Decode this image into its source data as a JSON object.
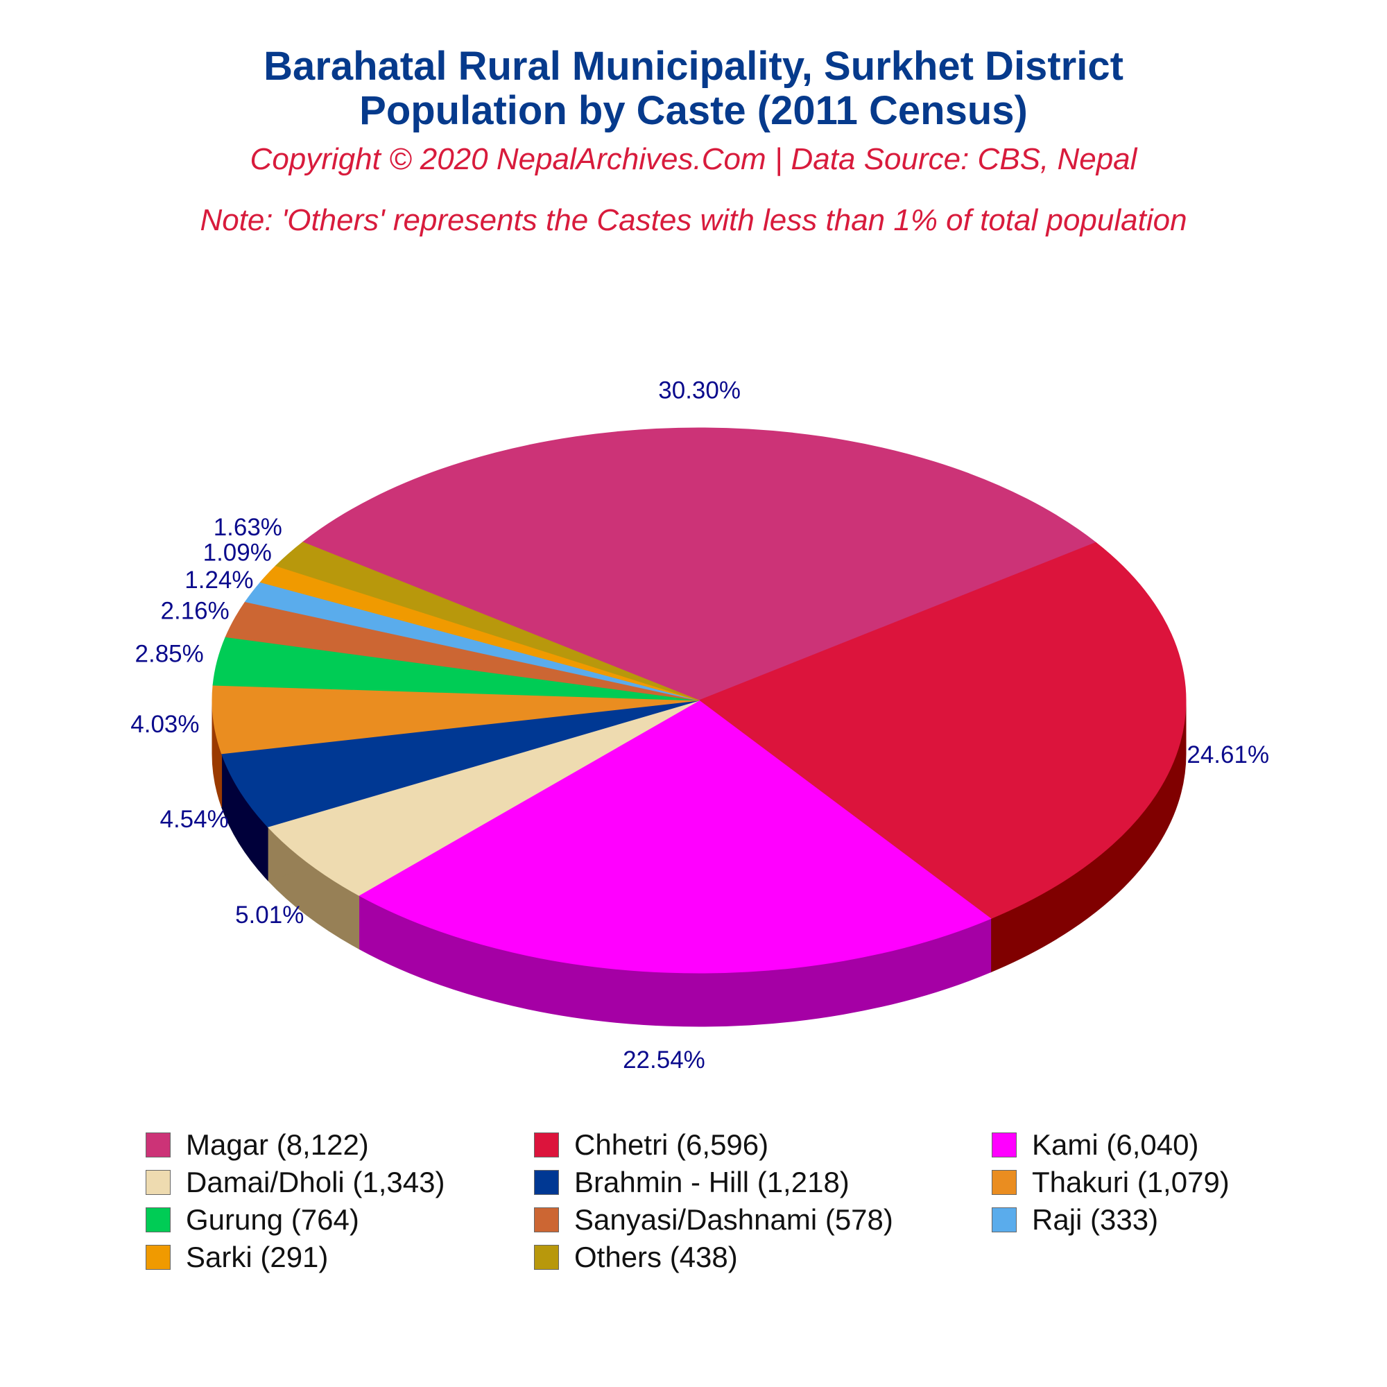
{
  "header": {
    "title_line1": "Barahatal Rural Municipality, Surkhet District",
    "title_line2": "Population by Caste (2011 Census)",
    "subtitle": "Copyright © 2020 NepalArchives.Com | Data Source: CBS, Nepal",
    "note": "Note: 'Others' represents the Castes with less than 1% of total population"
  },
  "chart_data": {
    "type": "pie",
    "style": "3d",
    "legend_position": "bottom",
    "categories": [
      "Magar",
      "Chhetri",
      "Kami",
      "Damai/Dholi",
      "Brahmin - Hill",
      "Thakuri",
      "Gurung",
      "Sanyasi/Dashnami",
      "Raji",
      "Sarki",
      "Others"
    ],
    "values": [
      8122,
      6596,
      6040,
      1343,
      1218,
      1079,
      764,
      578,
      333,
      291,
      438
    ],
    "percent_labels": [
      "30.30%",
      "24.61%",
      "22.54%",
      "5.01%",
      "4.54%",
      "4.03%",
      "2.85%",
      "2.16%",
      "1.24%",
      "1.09%",
      "1.63%"
    ],
    "legend_labels": [
      "Magar (8,122)",
      "Chhetri (6,596)",
      "Kami (6,040)",
      "Damai/Dholi (1,343)",
      "Brahmin - Hill (1,218)",
      "Thakuri (1,079)",
      "Gurung (764)",
      "Sanyasi/Dashnami (578)",
      "Raji (333)",
      "Sarki (291)",
      "Others (438)"
    ],
    "colors": [
      "#cc3377",
      "#dc143c",
      "#ff00ff",
      "#eedbb0",
      "#003893",
      "#ea8d20",
      "#00cc55",
      "#cc6633",
      "#5aacec",
      "#f09a00",
      "#b8980c"
    ],
    "side_colors": [
      "#8a1f4d",
      "#800000",
      "#a500a5",
      "#978056",
      "#00003a",
      "#9a3a00",
      "#007a30",
      "#7a3010",
      "#2a6aa8",
      "#a05000",
      "#6e5a00"
    ],
    "label_color": "#0a0a8c"
  }
}
